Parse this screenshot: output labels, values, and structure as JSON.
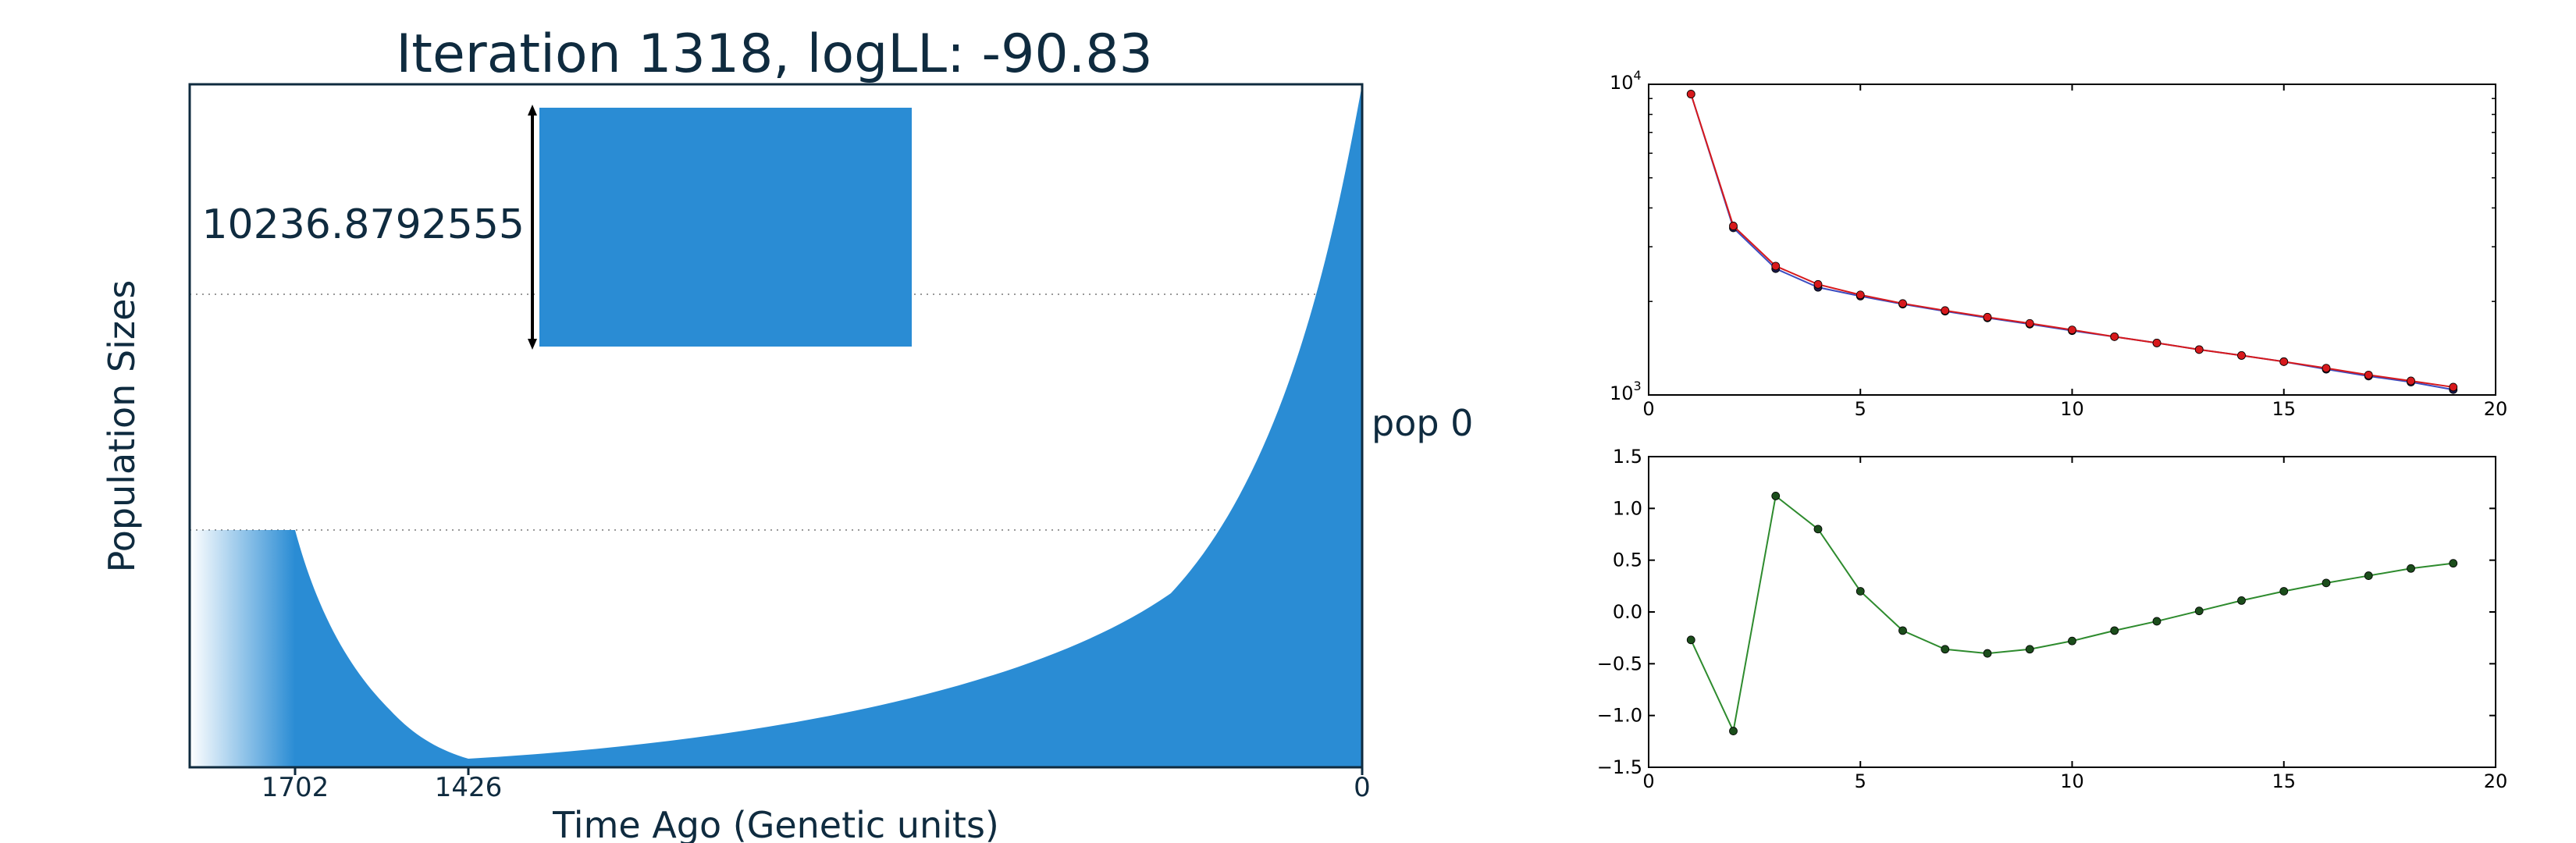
{
  "colors": {
    "fill": "#2a8cd4",
    "axis": "#0f2b3f",
    "series_red": "#d7191c",
    "series_blue": "#3b4cc0",
    "series_green": "#2e8b2e",
    "marker_dark": "#1b4d1b"
  },
  "main": {
    "title": "Iteration 1318, logLL:      -90.83",
    "ylabel": "Population Sizes",
    "xlabel": "Time Ago (Genetic units)",
    "scale_value": "10236.8792555",
    "pop_label": "pop 0",
    "xticks": [
      "1702",
      "1426",
      "0"
    ]
  },
  "chart_data": [
    {
      "type": "area",
      "title": "Iteration 1318, logLL:      -90.83",
      "xlabel": "Time Ago (Genetic units)",
      "ylabel": "Population Sizes",
      "annotations": [
        "10236.8792555",
        "pop 0"
      ],
      "x_ticks": [
        1702,
        1426,
        0
      ],
      "grid": false
    },
    {
      "type": "line",
      "yscale": "log",
      "xlim": [
        0,
        20
      ],
      "ylim": [
        1000,
        10000
      ],
      "xticks": [
        0,
        5,
        10,
        15,
        20
      ],
      "yticks": [
        "10^3",
        "10^4"
      ],
      "x": [
        1,
        2,
        3,
        4,
        5,
        6,
        7,
        8,
        9,
        10,
        11,
        12,
        13,
        14,
        15,
        16,
        17,
        18,
        19
      ],
      "series": [
        {
          "color": "red",
          "values": [
            9300,
            3500,
            2600,
            2270,
            2100,
            1970,
            1870,
            1780,
            1700,
            1620,
            1540,
            1470,
            1400,
            1340,
            1280,
            1220,
            1160,
            1110,
            1060
          ]
        },
        {
          "color": "blue",
          "values": [
            9300,
            3450,
            2550,
            2220,
            2080,
            1960,
            1860,
            1770,
            1690,
            1610,
            1540,
            1470,
            1400,
            1340,
            1280,
            1210,
            1150,
            1100,
            1040
          ]
        }
      ]
    },
    {
      "type": "line",
      "xlim": [
        0,
        20
      ],
      "ylim": [
        -1.5,
        1.5
      ],
      "xticks": [
        0,
        5,
        10,
        15,
        20
      ],
      "yticks": [
        "1.5",
        "1.0",
        "0.5",
        "0.0",
        "−0.5",
        "−1.0",
        "−1.5"
      ],
      "x": [
        1,
        2,
        3,
        4,
        5,
        6,
        7,
        8,
        9,
        10,
        11,
        12,
        13,
        14,
        15,
        16,
        17,
        18,
        19
      ],
      "series": [
        {
          "color": "green",
          "values": [
            -0.27,
            -1.15,
            1.12,
            0.8,
            0.2,
            -0.18,
            -0.36,
            -0.4,
            -0.36,
            -0.28,
            -0.18,
            -0.09,
            0.01,
            0.11,
            0.2,
            0.28,
            0.35,
            0.42,
            0.47
          ]
        }
      ]
    }
  ]
}
